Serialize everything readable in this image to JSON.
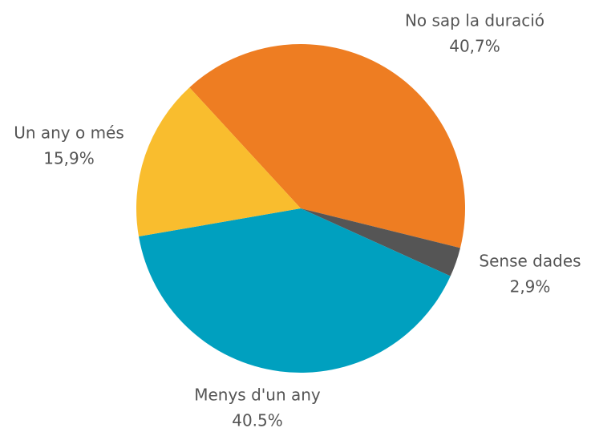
{
  "chart_data": {
    "type": "pie",
    "categories": [
      "No sap la duració",
      "Sense dades",
      "Menys d'un any",
      "Un any o més"
    ],
    "values": [
      40.7,
      2.9,
      40.5,
      15.9
    ],
    "value_labels": [
      "40,7%",
      "2,9%",
      "40.5%",
      "15,9%"
    ],
    "colors": [
      "#ee7d22",
      "#555555",
      "#00a0bf",
      "#f9bd2e"
    ]
  }
}
